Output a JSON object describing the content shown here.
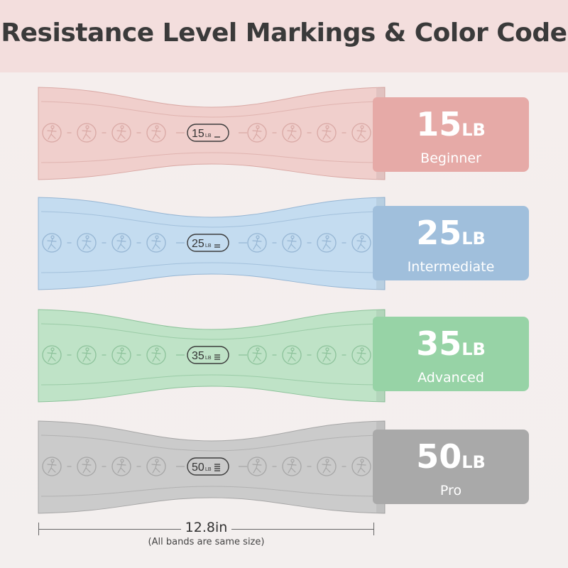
{
  "title": "Resistance Level Markings & Color Code",
  "bands": [
    {
      "value": "15",
      "unit": "LB",
      "level": "Beginner",
      "band_color": "#f0cfcc",
      "tag_color": "#e6aaa7",
      "stroke": "#d9a8a4"
    },
    {
      "value": "25",
      "unit": "LB",
      "level": "Intermediate",
      "band_color": "#c4dcf0",
      "tag_color": "#a0bfdc",
      "stroke": "#95b5d3"
    },
    {
      "value": "35",
      "unit": "LB",
      "level": "Advanced",
      "band_color": "#bfe3c7",
      "tag_color": "#97d3a6",
      "stroke": "#8cc29a"
    },
    {
      "value": "50",
      "unit": "LB",
      "level": "Pro",
      "band_color": "#cbcbcb",
      "tag_color": "#a9a9a9",
      "stroke": "#a6a6a6"
    }
  ],
  "band_label_unit": "LB",
  "exercise_icons": [
    "exercise-figure-1-icon",
    "exercise-figure-2-icon",
    "exercise-figure-3-icon",
    "exercise-figure-4-icon",
    "exercise-figure-5-icon",
    "exercise-figure-6-icon",
    "exercise-figure-7-icon",
    "exercise-figure-8-icon"
  ],
  "measurement": {
    "length": "12.8in",
    "note": "(All bands are same size)"
  }
}
